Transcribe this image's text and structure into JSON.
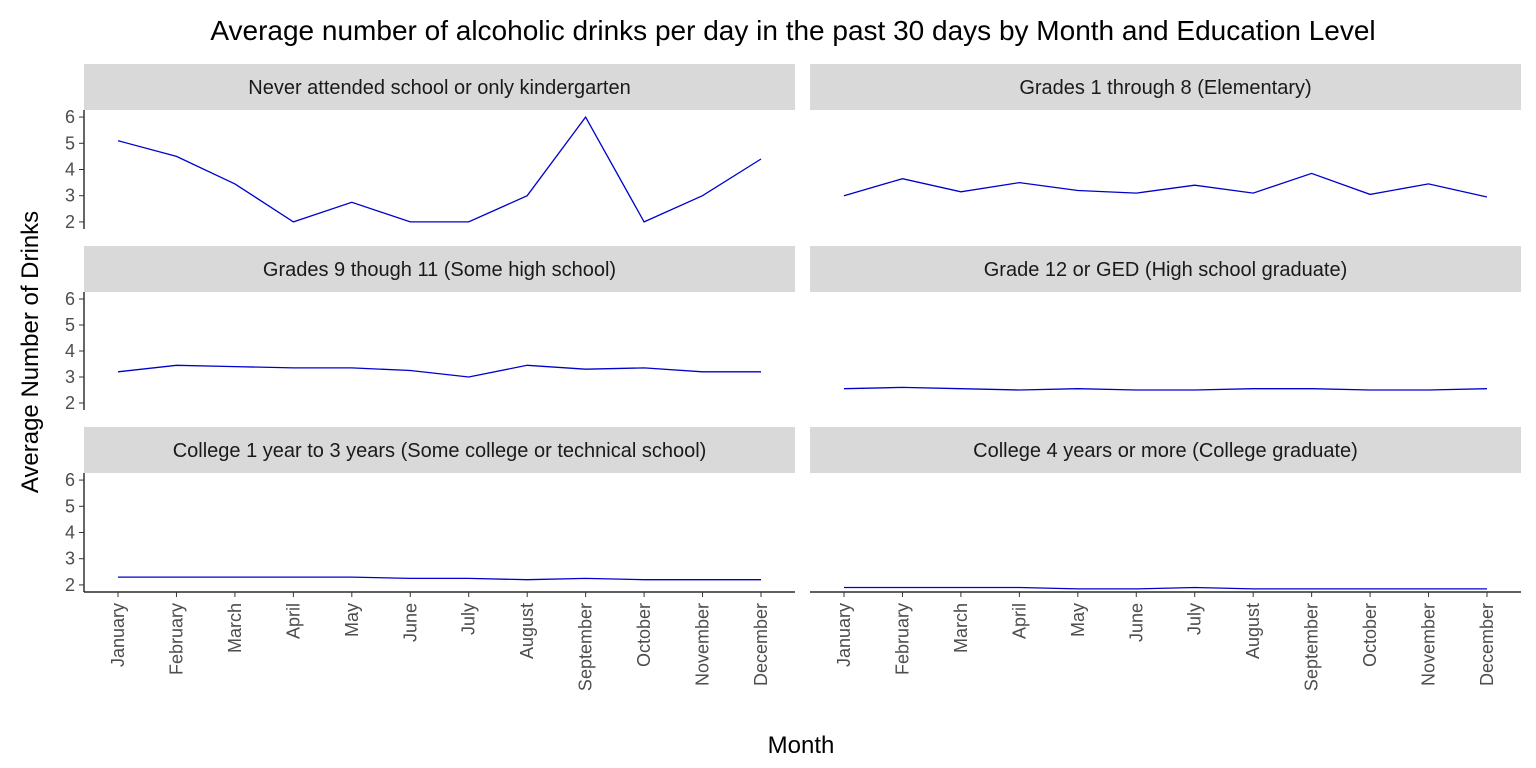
{
  "chart_data": {
    "type": "line",
    "title": "Average number of alcoholic drinks per day in the past 30 days by Month and Education Level",
    "xlabel": "Month",
    "ylabel": "Average Number of Drinks",
    "categories": [
      "January",
      "February",
      "March",
      "April",
      "May",
      "June",
      "July",
      "August",
      "September",
      "October",
      "November",
      "December"
    ],
    "y_ticks": [
      2,
      3,
      4,
      5,
      6
    ],
    "ylim": [
      1.73,
      6.27
    ],
    "line_color": "#0000cd",
    "strip_color": "#d9d9d9",
    "grid": false,
    "facets": [
      {
        "label": "Never attended school or only kindergarten",
        "values": [
          5.1,
          4.5,
          3.45,
          2.0,
          2.75,
          2.0,
          2.0,
          3.0,
          6.0,
          2.0,
          3.0,
          4.4
        ]
      },
      {
        "label": "Grades 1 through 8 (Elementary)",
        "values": [
          3.0,
          3.65,
          3.15,
          3.5,
          3.2,
          3.1,
          3.4,
          3.1,
          3.85,
          3.05,
          3.45,
          2.95
        ]
      },
      {
        "label": "Grades 9 though 11 (Some high school)",
        "values": [
          3.2,
          3.45,
          3.4,
          3.35,
          3.35,
          3.25,
          3.0,
          3.45,
          3.3,
          3.35,
          3.2,
          3.2
        ]
      },
      {
        "label": "Grade 12 or GED (High school graduate)",
        "values": [
          2.55,
          2.6,
          2.55,
          2.5,
          2.55,
          2.5,
          2.5,
          2.55,
          2.55,
          2.5,
          2.5,
          2.55
        ]
      },
      {
        "label": "College 1 year to 3 years (Some college or technical school)",
        "values": [
          2.3,
          2.3,
          2.3,
          2.3,
          2.3,
          2.25,
          2.25,
          2.2,
          2.25,
          2.2,
          2.2,
          2.2
        ]
      },
      {
        "label": "College 4 years or more (College graduate)",
        "values": [
          1.9,
          1.9,
          1.9,
          1.9,
          1.85,
          1.85,
          1.9,
          1.85,
          1.85,
          1.85,
          1.85,
          1.85
        ]
      }
    ]
  }
}
